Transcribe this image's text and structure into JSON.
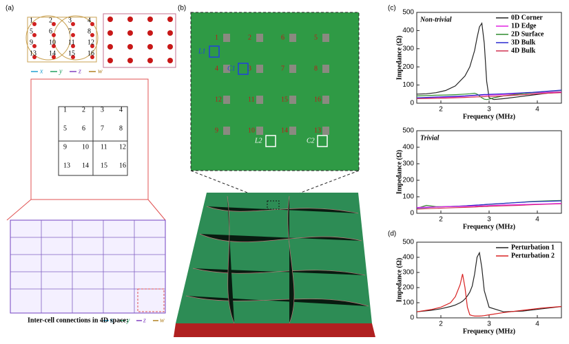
{
  "panel_labels": [
    "(a)",
    "(b)",
    "(c)",
    "(d)"
  ],
  "panel_a": {
    "nodes": [
      "1",
      "2",
      "3",
      "4",
      "5",
      "6",
      "7",
      "8",
      "9",
      "10",
      "11",
      "12",
      "13",
      "14",
      "15",
      "16"
    ],
    "axes_legend": [
      "x",
      "y",
      "z",
      "w"
    ],
    "footer": "Inter-cell connections in 4D space:"
  },
  "panel_b": {
    "nodes": [
      "1",
      "2",
      "6",
      "5",
      "4",
      "3",
      "7",
      "8",
      "12",
      "11",
      "15",
      "16",
      "9",
      "10",
      "14",
      "13"
    ],
    "components": [
      "L1",
      "C1",
      "L2",
      "C2"
    ]
  },
  "chart_data": [
    {
      "type": "line",
      "annotation": "Non-trivial",
      "xlabel": "Frequency (MHz)",
      "ylabel": "Impedance (Ω)",
      "x": [
        1.5,
        1.7,
        1.9,
        2.1,
        2.3,
        2.5,
        2.6,
        2.7,
        2.75,
        2.8,
        2.85,
        2.9,
        2.95,
        3.0,
        3.1,
        3.3,
        3.6,
        3.9,
        4.2,
        4.5
      ],
      "xlim": [
        1.5,
        4.5
      ],
      "xticks": [
        2,
        3,
        4
      ],
      "ylim": [
        0,
        500
      ],
      "yticks": [
        0,
        100,
        200,
        300,
        400,
        500
      ],
      "legend": "upper right",
      "series": [
        {
          "name": "0D Corner",
          "color": "#222222",
          "values": [
            50,
            52,
            58,
            70,
            95,
            150,
            200,
            290,
            360,
            420,
            440,
            330,
            120,
            30,
            20,
            25,
            35,
            45,
            55,
            60
          ]
        },
        {
          "name": "1D Edge",
          "color": "#e020e0",
          "values": [
            30,
            30,
            32,
            33,
            35,
            38,
            40,
            42,
            43,
            44,
            44,
            45,
            45,
            45,
            46,
            48,
            52,
            56,
            60,
            62
          ]
        },
        {
          "name": "2D Surface",
          "color": "#2e8b2e",
          "values": [
            40,
            42,
            44,
            45,
            47,
            50,
            52,
            55,
            50,
            40,
            30,
            22,
            20,
            22,
            30,
            40,
            50,
            58,
            65,
            70
          ]
        },
        {
          "name": "3D Bulk",
          "color": "#2a2ad0",
          "values": [
            30,
            32,
            34,
            36,
            38,
            40,
            42,
            44,
            45,
            46,
            47,
            48,
            48,
            49,
            50,
            52,
            56,
            60,
            66,
            72
          ]
        },
        {
          "name": "4D Bulk",
          "color": "#d03050",
          "values": [
            25,
            26,
            27,
            28,
            30,
            32,
            33,
            34,
            35,
            35,
            36,
            36,
            37,
            37,
            38,
            40,
            45,
            50,
            55,
            58
          ]
        }
      ]
    },
    {
      "type": "line",
      "annotation": "Trivial",
      "xlabel": "Frequency (MHz)",
      "ylabel": "Impedance (Ω)",
      "x": [
        1.5,
        1.7,
        1.9,
        2.1,
        2.3,
        2.5,
        2.6,
        2.7,
        2.75,
        2.8,
        2.85,
        2.9,
        2.95,
        3.0,
        3.1,
        3.3,
        3.6,
        3.9,
        4.2,
        4.5
      ],
      "xlim": [
        1.5,
        4.5
      ],
      "xticks": [
        2,
        3,
        4
      ],
      "ylim": [
        0,
        500
      ],
      "yticks": [
        0,
        100,
        200,
        300,
        400,
        500
      ],
      "series": [
        {
          "color": "#2e8b2e",
          "values": [
            30,
            48,
            40,
            40,
            42,
            45,
            47,
            48,
            49,
            50,
            51,
            52,
            53,
            54,
            56,
            60,
            66,
            72,
            75,
            78
          ]
        },
        {
          "color": "#2a2ad0",
          "values": [
            32,
            35,
            38,
            40,
            42,
            45,
            47,
            49,
            50,
            51,
            52,
            53,
            54,
            55,
            57,
            60,
            65,
            70,
            72,
            75
          ]
        },
        {
          "color": "#d03050",
          "values": [
            25,
            28,
            30,
            32,
            34,
            36,
            37,
            38,
            39,
            40,
            40,
            41,
            41,
            42,
            43,
            45,
            48,
            52,
            55,
            58
          ]
        },
        {
          "color": "#e020e0",
          "values": [
            35,
            37,
            38,
            40,
            41,
            42,
            43,
            44,
            44,
            45,
            45,
            46,
            46,
            47,
            48,
            50,
            52,
            55,
            57,
            60
          ]
        }
      ]
    },
    {
      "type": "line",
      "xlabel": "Frequency (MHz)",
      "ylabel": "Impedance (Ω)",
      "x": [
        1.5,
        1.8,
        2.0,
        2.2,
        2.3,
        2.4,
        2.45,
        2.5,
        2.55,
        2.6,
        2.65,
        2.7,
        2.75,
        2.8,
        2.85,
        2.9,
        3.0,
        3.3,
        3.7,
        4.1,
        4.5
      ],
      "xlim": [
        1.5,
        4.5
      ],
      "xticks": [
        2,
        3,
        4
      ],
      "ylim": [
        0,
        500
      ],
      "yticks": [
        0,
        100,
        200,
        300,
        400,
        500
      ],
      "legend": "upper right",
      "series": [
        {
          "name": "Perturbation 1",
          "color": "#222222",
          "values": [
            40,
            50,
            60,
            75,
            85,
            100,
            110,
            125,
            145,
            170,
            210,
            290,
            400,
            430,
            330,
            180,
            70,
            40,
            45,
            60,
            75
          ]
        },
        {
          "name": "Perturbation 2",
          "color": "#d82020",
          "values": [
            40,
            55,
            70,
            100,
            140,
            220,
            290,
            200,
            70,
            20,
            15,
            12,
            12,
            12,
            13,
            15,
            20,
            35,
            50,
            65,
            75
          ]
        }
      ]
    }
  ]
}
